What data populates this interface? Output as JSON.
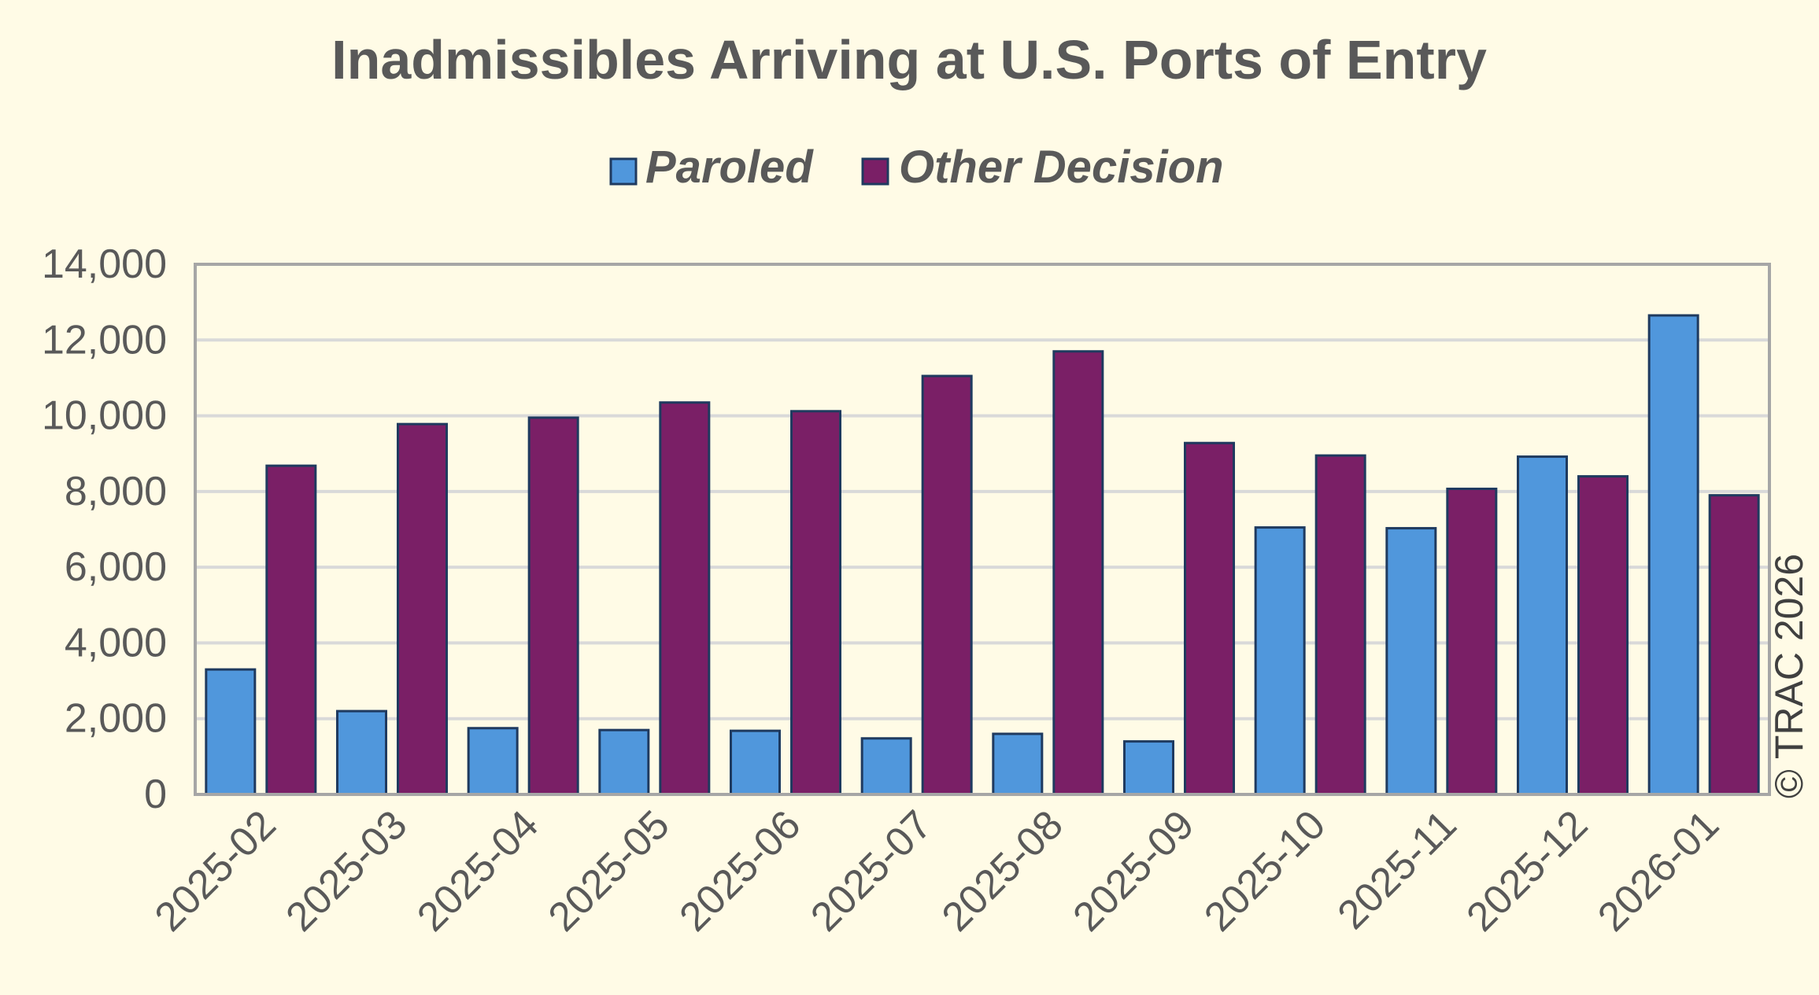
{
  "chart_data": {
    "type": "bar",
    "title": "Inadmissibles Arriving at U.S. Ports of Entry",
    "categories": [
      "2025-02",
      "2025-03",
      "2025-04",
      "2025-05",
      "2025-06",
      "2025-07",
      "2025-08",
      "2025-09",
      "2025-10",
      "2025-11",
      "2025-12",
      "2026-01"
    ],
    "series": [
      {
        "name": "Paroled",
        "color": "#5097dc",
        "values": [
          3300,
          2200,
          1750,
          1700,
          1680,
          1480,
          1600,
          1400,
          7050,
          7030,
          8920,
          12650
        ]
      },
      {
        "name": "Other Decision",
        "color": "#7a1f66",
        "values": [
          8680,
          9780,
          9950,
          10350,
          10120,
          11050,
          11700,
          9280,
          8950,
          8070,
          8400,
          7900
        ]
      }
    ],
    "yticks": [
      "0",
      "2,000",
      "4,000",
      "6,000",
      "8,000",
      "10,000",
      "12,000",
      "14,000"
    ],
    "ylim": [
      0,
      14000
    ],
    "xlabel": "",
    "ylabel": "",
    "grid": true,
    "legend_position": "top-center",
    "credit": "© TRAC 2026"
  },
  "colors": {
    "background": "#fffbe6",
    "grid": "#d9d9d9",
    "axis": "#a6a6a6",
    "bar_outline": "#1f3a5f",
    "text": "#595959"
  }
}
